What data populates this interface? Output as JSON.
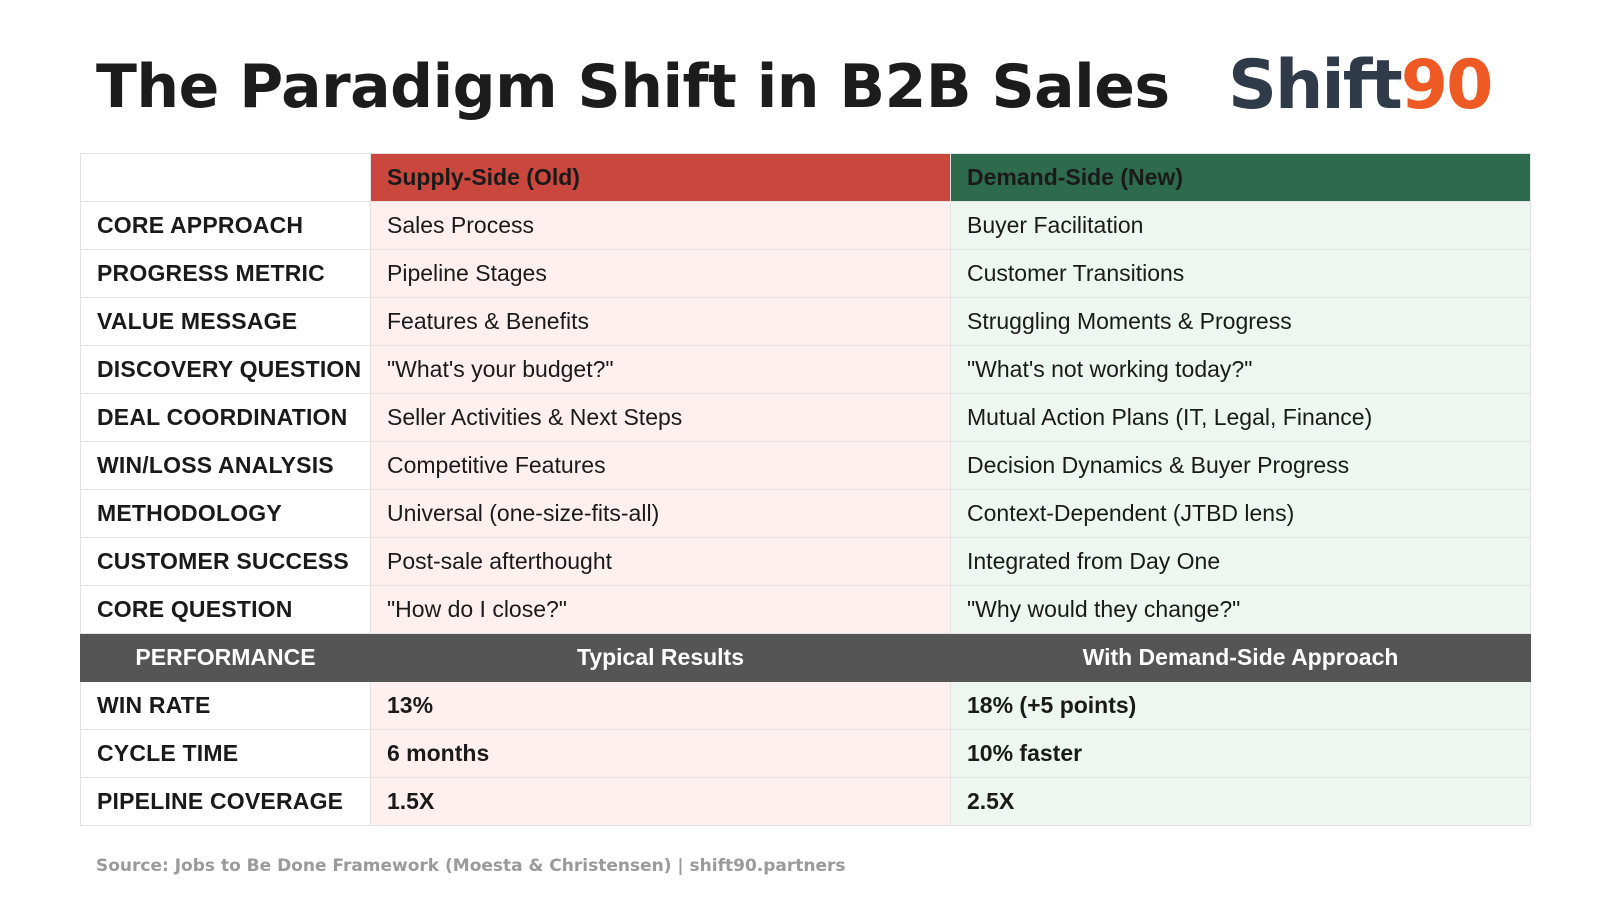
{
  "title": "The Paradigm Shift in B2B Sales",
  "logo": {
    "part_a": "Shift",
    "part_b": "90",
    "color_a": "#2f3b48",
    "color_b": "#ef5a24"
  },
  "colors": {
    "old_header": "#c9473d",
    "new_header": "#2e6a4e",
    "old_row_bg": "#fdf0ee",
    "new_row_bg": "#edf6f0",
    "performance_header": "#555555"
  },
  "table": {
    "headers": {
      "blank": "",
      "old": "Supply-Side (Old)",
      "new": "Demand-Side (New)"
    },
    "rows": [
      {
        "label": "CORE APPROACH",
        "old": "Sales Process",
        "new": "Buyer Facilitation"
      },
      {
        "label": "PROGRESS METRIC",
        "old": "Pipeline Stages",
        "new": "Customer Transitions"
      },
      {
        "label": "VALUE MESSAGE",
        "old": "Features & Benefits",
        "new": "Struggling Moments & Progress"
      },
      {
        "label": "DISCOVERY QUESTION",
        "old": "\"What's your budget?\"",
        "new": "\"What's not working today?\""
      },
      {
        "label": "DEAL COORDINATION",
        "old": "Seller Activities & Next Steps",
        "new": "Mutual Action Plans (IT, Legal, Finance)"
      },
      {
        "label": "WIN/LOSS ANALYSIS",
        "old": "Competitive Features",
        "new": "Decision Dynamics & Buyer Progress"
      },
      {
        "label": "METHODOLOGY",
        "old": "Universal (one-size-fits-all)",
        "new": "Context-Dependent (JTBD lens)"
      },
      {
        "label": "CUSTOMER SUCCESS",
        "old": "Post-sale afterthought",
        "new": "Integrated from Day One"
      },
      {
        "label": "CORE QUESTION",
        "old": "\"How do I close?\"",
        "new": "\"Why would they change?\""
      }
    ],
    "performance_headers": {
      "label": "PERFORMANCE",
      "old": "Typical Results",
      "new": "With Demand-Side Approach"
    },
    "performance_rows": [
      {
        "label": "WIN RATE",
        "old": "13%",
        "new": "18% (+5 points)"
      },
      {
        "label": "CYCLE TIME",
        "old": "6 months",
        "new": "10% faster"
      },
      {
        "label": "PIPELINE COVERAGE",
        "old": "1.5X",
        "new": "2.5X"
      }
    ]
  },
  "source": "Source: Jobs to Be Done Framework (Moesta & Christensen) | shift90.partners"
}
